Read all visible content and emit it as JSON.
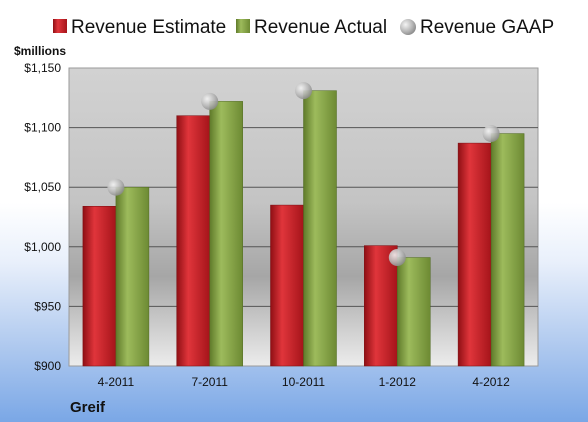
{
  "chart_data": {
    "type": "bar",
    "ylabel": "$millions",
    "footer": "Greif",
    "categories": [
      "4-2011",
      "7-2011",
      "10-2011",
      "1-2012",
      "4-2012"
    ],
    "series": [
      {
        "name": "Revenue Estimate",
        "kind": "bar",
        "color": "#cc2027",
        "values": [
          1034,
          1110,
          1035,
          1001,
          1087
        ]
      },
      {
        "name": "Revenue Actual",
        "kind": "bar",
        "color": "#8aa94c",
        "values": [
          1050,
          1122,
          1131,
          991,
          1095
        ]
      },
      {
        "name": "Revenue GAAP",
        "kind": "marker",
        "color": "#b8b8b8",
        "values": [
          1050,
          1122,
          1131,
          991,
          1095
        ]
      }
    ],
    "ylim": [
      900,
      1150
    ],
    "yticks": [
      900,
      950,
      1000,
      1050,
      1100,
      1150
    ],
    "ytick_labels": [
      "$900",
      "$950",
      "$1,000",
      "$1,050",
      "$1,100",
      "$1,150"
    ],
    "grid": true,
    "legend_position": "top"
  }
}
